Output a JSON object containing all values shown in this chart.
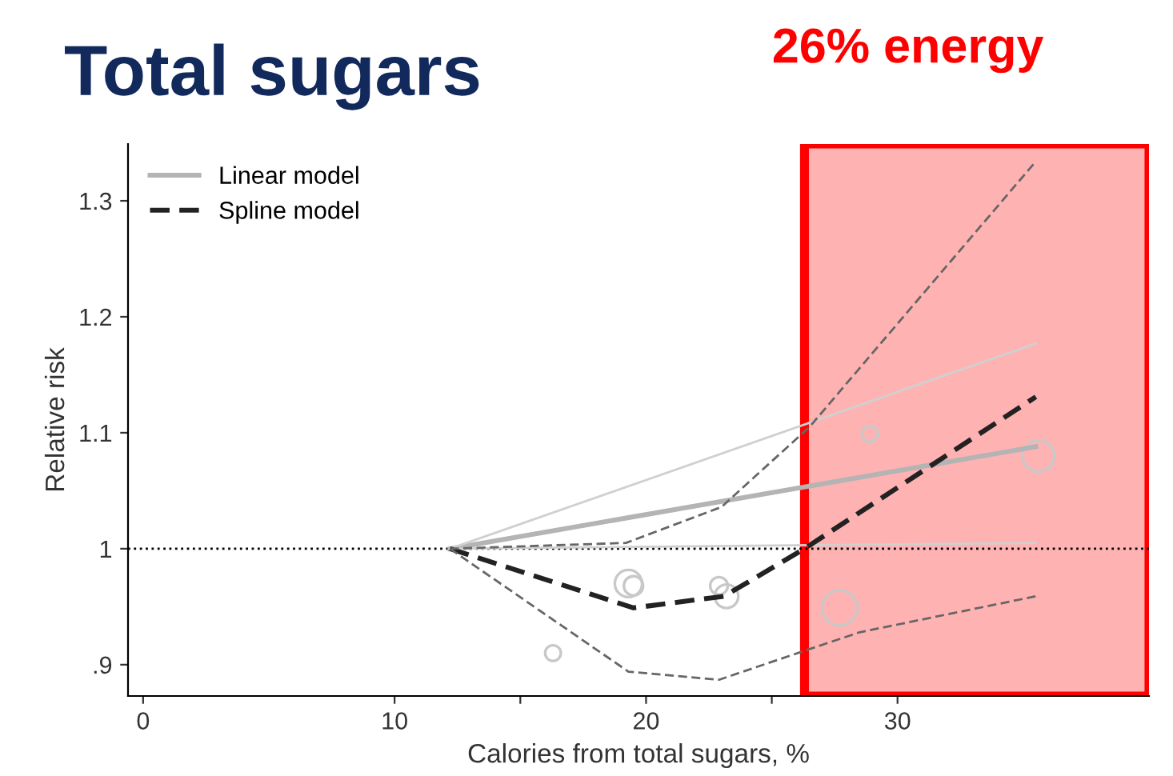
{
  "chart_data": {
    "type": "line",
    "title": "Total sugars",
    "xlabel": "Calories from total sugars, %",
    "ylabel": "Relative risk",
    "series": [
      {
        "name": "Linear model",
        "color": "#b4b4b4",
        "line_style": "solid",
        "x": [
          12.2,
          35.5
        ],
        "values": [
          1.0,
          1.088
        ]
      },
      {
        "type": "line",
        "color": "#d0d0d0",
        "line_style": "solid",
        "x": [
          12.2,
          35.5
        ],
        "values": [
          1.0,
          1.177
        ]
      },
      {
        "type": "line",
        "color": "#d0d0d0",
        "line_style": "solid",
        "x": [
          12.2,
          35.5
        ],
        "values": [
          1.0,
          1.005
        ]
      },
      {
        "name": "Spline model",
        "type": "line",
        "color": "#222222",
        "line_style": "dashed",
        "x": [
          12.2,
          19.5,
          23.1,
          26.3,
          35.5
        ],
        "values": [
          1.0,
          0.949,
          0.959,
          1.0,
          1.131
        ]
      },
      {
        "type": "line",
        "color": "#666666",
        "line_style": "dashed",
        "x": [
          12.2,
          19.2,
          23.0,
          26.5,
          35.5
        ],
        "values": [
          1.0,
          1.005,
          1.036,
          1.105,
          1.334
        ]
      },
      {
        "type": "line",
        "color": "#666666",
        "line_style": "dashed",
        "x": [
          12.2,
          19.3,
          22.9,
          26.3,
          28.5,
          35.5
        ],
        "values": [
          1.0,
          0.894,
          0.887,
          0.912,
          0.928,
          0.959
        ]
      },
      {
        "type": "bubble",
        "color": "#c8c8c8",
        "x": [
          16.3,
          19.3,
          19.5,
          22.9,
          23.2,
          27.7,
          28.9,
          35.6
        ],
        "values": [
          0.91,
          0.97,
          0.968,
          0.968,
          0.959,
          0.949,
          1.099,
          1.08
        ],
        "sizes": [
          0.2,
          0.6,
          0.3,
          0.25,
          0.45,
          1.0,
          0.2,
          0.8
        ]
      }
    ],
    "xlim": [
      -0.6,
      40
    ],
    "xticks": [
      0,
      10,
      {
        "value": 15,
        "label": null
      },
      20,
      {
        "value": 25,
        "label": null
      },
      30
    ],
    "ylim": [
      0.873,
      1.349
    ],
    "yticks": [
      {
        "value": 0.9,
        "label": ".9"
      },
      1,
      1.1,
      1.2,
      1.3
    ],
    "ref_lines": [
      {
        "axis": "y",
        "value": 1,
        "color": "#000000",
        "line_style": "dotted"
      }
    ],
    "bands": [
      {
        "axis": "x",
        "from": 26.3,
        "to": 40,
        "label": "26% energy",
        "color": "#ff0000"
      }
    ],
    "legend": "top left",
    "grid": false
  }
}
